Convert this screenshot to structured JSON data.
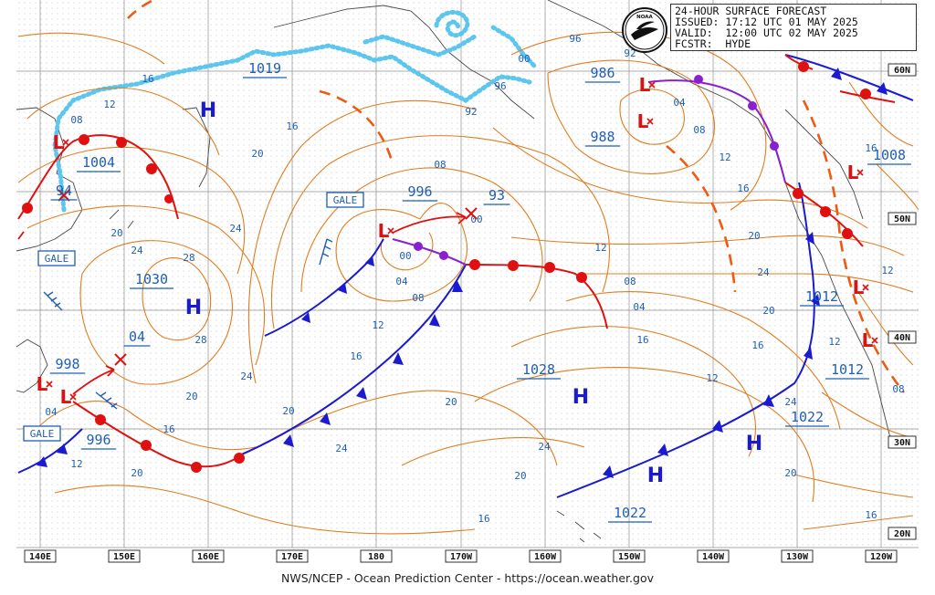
{
  "header": {
    "title": "24-HOUR SURFACE FORECAST",
    "issued_label": "ISSUED:",
    "issued_value": "17:12 UTC 01 MAY 2025",
    "valid_label": "VALID:",
    "valid_value": "12:00 UTC 02 MAY 2025",
    "forecaster_label": "FCSTR:",
    "forecaster_value": "HYDE",
    "logo_text": "NOAA"
  },
  "footer": "NWS/NCEP - Ocean Prediction Center - https://ocean.weather.gov",
  "longitude_labels": [
    "140E",
    "150E",
    "160E",
    "170E",
    "180",
    "170W",
    "160W",
    "150W",
    "140W",
    "130W",
    "120W"
  ],
  "latitude_labels": [
    "60N",
    "50N",
    "40N",
    "30N",
    "20N"
  ],
  "pressure_systems": [
    {
      "type": "H",
      "value": "1030"
    },
    {
      "type": "H",
      "value": "1028"
    },
    {
      "type": "H",
      "value": "1022"
    },
    {
      "type": "H",
      "value": "1022"
    },
    {
      "type": "H",
      "value": "1019"
    },
    {
      "type": "H",
      "value": ""
    },
    {
      "type": "L",
      "value": "996"
    },
    {
      "type": "L",
      "value": "1004"
    },
    {
      "type": "L",
      "value": "998"
    },
    {
      "type": "L",
      "value": "996"
    },
    {
      "type": "L",
      "value": "986"
    },
    {
      "type": "L",
      "value": "988"
    },
    {
      "type": "L",
      "value": "1008"
    },
    {
      "type": "L",
      "value": "1012"
    },
    {
      "type": "L",
      "value": "1012"
    },
    {
      "type": "L",
      "value": "94"
    },
    {
      "type": "L",
      "value": "04"
    },
    {
      "type": "L",
      "value": "93"
    }
  ],
  "warnings": [
    "GALE",
    "GALE",
    "GALE"
  ],
  "isobar_labels": [
    "16",
    "12",
    "08",
    "20",
    "24",
    "28",
    "04",
    "00",
    "96",
    "92",
    "16",
    "20",
    "24",
    "28",
    "24",
    "20",
    "16",
    "12",
    "08",
    "04",
    "00",
    "08",
    "12",
    "16",
    "20",
    "24",
    "24",
    "20",
    "16",
    "12",
    "08",
    "04",
    "00",
    "96",
    "92",
    "04",
    "08",
    "12",
    "16",
    "20",
    "24",
    "20",
    "16",
    "12",
    "16",
    "20",
    "24",
    "20",
    "16",
    "12",
    "08",
    "12",
    "16",
    "20"
  ],
  "colors": {
    "isobar": "#e07d1f",
    "label": "#1f5fb4",
    "cold_front": "#1a1ad0",
    "warm_front": "#e01010",
    "occluded": "#8a1fd0",
    "ice": "#5cc6ee",
    "trough": "#ee5a10",
    "land": "#444444",
    "grid": "#888888",
    "dots": "#c8c8c8"
  }
}
